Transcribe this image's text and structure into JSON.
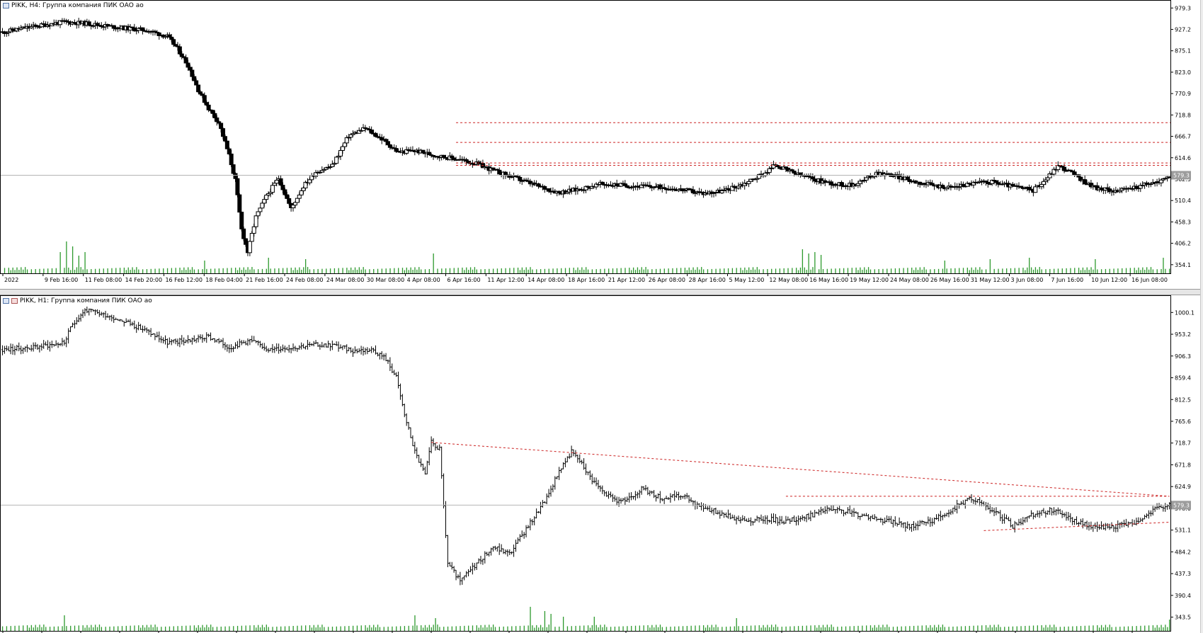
{
  "top_panel": {
    "title": "PIKK, H4:  Группа компания ПИК ОАО ао",
    "current_price_label": "579.3"
  },
  "bottom_panel": {
    "title": "PIKK, H1:  Группа компания ПИК ОАО ао",
    "current_price_label": "579.3"
  },
  "colors": {
    "candle_up": "#ffffff",
    "candle_down": "#000000",
    "volume": "#2e9a2e",
    "level_lines": "#cc2222",
    "grid": "#c8c8c8"
  },
  "chart_data": [
    {
      "type": "candlestick",
      "timeframe": "H4",
      "title": "PIKK, H4:  Группа компания ПИК ОАО ао",
      "y_ticks": [
        "979.3",
        "927.2",
        "875.1",
        "823.0",
        "770.9",
        "718.8",
        "666.7",
        "614.6",
        "562.5",
        "510.4",
        "458.3",
        "406.2",
        "354.1"
      ],
      "ylim": [
        340,
        985
      ],
      "x_tick_labels": [
        "2022",
        "9 Feb 16:00",
        "11 Feb 08:00",
        "14 Feb 20:00",
        "16 Feb 12:00",
        "18 Feb 04:00",
        "21 Feb 16:00",
        "24 Feb 08:00",
        "24 Mar 08:00",
        "30 Mar 08:00",
        "4 Apr 08:00",
        "6 Apr 16:00",
        "11 Apr 12:00",
        "14 Apr 08:00",
        "18 Apr 16:00",
        "21 Apr 12:00",
        "26 Apr 08:00",
        "28 Apr 16:00",
        "5 May 12:00",
        "12 May 08:00",
        "16 May 16:00",
        "19 May 12:00",
        "24 May 08:00",
        "26 May 16:00",
        "31 May 12:00",
        "3 Jun 08:00",
        "7 Jun 16:00",
        "10 Jun 12:00",
        "16 Jun 08:00"
      ],
      "close_path": [
        [
          0,
          920
        ],
        [
          10,
          930
        ],
        [
          20,
          938
        ],
        [
          30,
          945
        ],
        [
          40,
          942
        ],
        [
          50,
          936
        ],
        [
          60,
          930
        ],
        [
          70,
          925
        ],
        [
          80,
          910
        ],
        [
          85,
          880
        ],
        [
          90,
          840
        ],
        [
          95,
          780
        ],
        [
          100,
          735
        ],
        [
          105,
          700
        ],
        [
          110,
          620
        ],
        [
          113,
          560
        ],
        [
          116,
          440
        ],
        [
          119,
          385
        ],
        [
          123,
          470
        ],
        [
          128,
          520
        ],
        [
          134,
          565
        ],
        [
          140,
          490
        ],
        [
          146,
          545
        ],
        [
          152,
          580
        ],
        [
          160,
          595
        ],
        [
          168,
          668
        ],
        [
          176,
          686
        ],
        [
          184,
          660
        ],
        [
          192,
          628
        ],
        [
          200,
          632
        ],
        [
          210,
          620
        ],
        [
          220,
          612
        ],
        [
          230,
          600
        ],
        [
          240,
          580
        ],
        [
          250,
          563
        ],
        [
          260,
          545
        ],
        [
          270,
          530
        ],
        [
          280,
          538
        ],
        [
          290,
          550
        ],
        [
          300,
          548
        ],
        [
          310,
          545
        ],
        [
          320,
          543
        ],
        [
          330,
          536
        ],
        [
          340,
          528
        ],
        [
          350,
          534
        ],
        [
          360,
          552
        ],
        [
          370,
          578
        ],
        [
          375,
          598
        ],
        [
          380,
          585
        ],
        [
          385,
          575
        ],
        [
          395,
          560
        ],
        [
          405,
          550
        ],
        [
          412,
          548
        ],
        [
          418,
          560
        ],
        [
          424,
          578
        ],
        [
          432,
          572
        ],
        [
          440,
          560
        ],
        [
          450,
          548
        ],
        [
          460,
          542
        ],
        [
          470,
          552
        ],
        [
          480,
          556
        ],
        [
          490,
          545
        ],
        [
          500,
          535
        ],
        [
          506,
          562
        ],
        [
          512,
          595
        ],
        [
          518,
          580
        ],
        [
          524,
          558
        ],
        [
          532,
          538
        ],
        [
          542,
          534
        ],
        [
          552,
          546
        ],
        [
          562,
          558
        ],
        [
          566,
          572
        ]
      ],
      "volume_spikes": [
        [
          28,
          30
        ],
        [
          31,
          45
        ],
        [
          34,
          38
        ],
        [
          37,
          25
        ],
        [
          40,
          30
        ],
        [
          98,
          18
        ],
        [
          129,
          22
        ],
        [
          147,
          20
        ],
        [
          209,
          28
        ],
        [
          388,
          34
        ],
        [
          391,
          28
        ],
        [
          394,
          30
        ],
        [
          397,
          26
        ],
        [
          457,
          18
        ],
        [
          479,
          20
        ],
        [
          498,
          22
        ],
        [
          530,
          20
        ],
        [
          563,
          22
        ]
      ],
      "horizontal_levels": [
        700,
        652,
        602,
        596
      ]
    },
    {
      "type": "bar",
      "timeframe": "H1",
      "title": "PIKK, H1:  Группа компания ПИК ОАО ао",
      "y_ticks": [
        "1000.1",
        "953.2",
        "906.3",
        "859.4",
        "812.5",
        "765.6",
        "718.7",
        "671.8",
        "624.9",
        "578.0",
        "531.1",
        "484.2",
        "437.3",
        "390.4",
        "343.5"
      ],
      "ylim": [
        320,
        1025
      ],
      "close_path": [
        [
          0,
          920
        ],
        [
          15,
          925
        ],
        [
          30,
          935
        ],
        [
          34,
          975
        ],
        [
          40,
          1005
        ],
        [
          50,
          995
        ],
        [
          60,
          980
        ],
        [
          70,
          960
        ],
        [
          80,
          935
        ],
        [
          90,
          940
        ],
        [
          100,
          948
        ],
        [
          110,
          925
        ],
        [
          120,
          940
        ],
        [
          130,
          920
        ],
        [
          140,
          925
        ],
        [
          150,
          930
        ],
        [
          160,
          930
        ],
        [
          170,
          918
        ],
        [
          180,
          920
        ],
        [
          186,
          900
        ],
        [
          191,
          860
        ],
        [
          195,
          780
        ],
        [
          200,
          700
        ],
        [
          205,
          650
        ],
        [
          208,
          720
        ],
        [
          212,
          705
        ],
        [
          216,
          460
        ],
        [
          222,
          420
        ],
        [
          230,
          460
        ],
        [
          238,
          495
        ],
        [
          246,
          480
        ],
        [
          252,
          520
        ],
        [
          258,
          560
        ],
        [
          264,
          600
        ],
        [
          270,
          660
        ],
        [
          276,
          700
        ],
        [
          280,
          680
        ],
        [
          286,
          640
        ],
        [
          292,
          610
        ],
        [
          300,
          590
        ],
        [
          310,
          620
        ],
        [
          320,
          600
        ],
        [
          330,
          605
        ],
        [
          340,
          580
        ],
        [
          350,
          565
        ],
        [
          360,
          550
        ],
        [
          370,
          556
        ],
        [
          380,
          550
        ],
        [
          390,
          560
        ],
        [
          400,
          575
        ],
        [
          410,
          570
        ],
        [
          420,
          560
        ],
        [
          430,
          550
        ],
        [
          440,
          540
        ],
        [
          450,
          550
        ],
        [
          460,
          575
        ],
        [
          470,
          600
        ],
        [
          480,
          575
        ],
        [
          490,
          540
        ],
        [
          500,
          565
        ],
        [
          510,
          575
        ],
        [
          520,
          550
        ],
        [
          530,
          535
        ],
        [
          540,
          540
        ],
        [
          550,
          548
        ],
        [
          560,
          578
        ],
        [
          566,
          585
        ]
      ],
      "volume_spikes": [
        [
          30,
          22
        ],
        [
          200,
          22
        ],
        [
          210,
          18
        ],
        [
          256,
          34
        ],
        [
          263,
          28
        ],
        [
          266,
          24
        ],
        [
          272,
          20
        ],
        [
          287,
          20
        ],
        [
          356,
          18
        ],
        [
          566,
          16
        ]
      ],
      "trend_lines": [
        [
          [
            208,
            720
          ],
          [
            566,
            604
          ]
        ],
        [
          [
            380,
            604
          ],
          [
            566,
            604
          ]
        ],
        [
          [
            476,
            530
          ],
          [
            566,
            548
          ]
        ]
      ]
    }
  ]
}
